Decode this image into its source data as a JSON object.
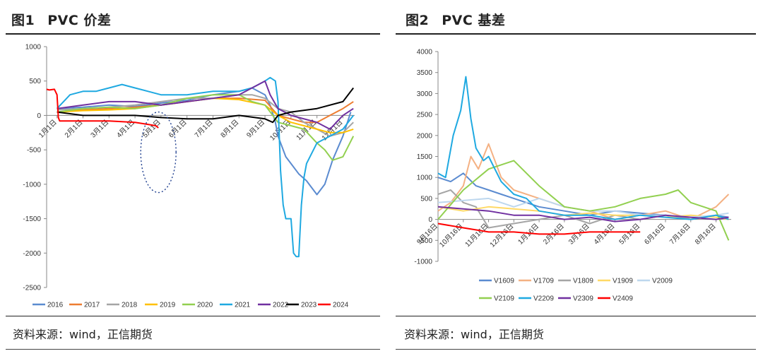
{
  "fig1": {
    "title_num": "图1",
    "title_text": "PVC 价差",
    "source": "资料来源：wind，正信期货"
  },
  "fig2": {
    "title_num": "图2",
    "title_text": "PVC 基差",
    "source": "资料来源：wind，正信期货"
  },
  "chart_data": [
    {
      "type": "line",
      "title": "PVC 价差",
      "xlabel": "",
      "ylabel": "",
      "ylim": [
        -2500,
        1000
      ],
      "yticks": [
        "1000",
        "500",
        "0",
        "-500",
        "-1000",
        "-1500",
        "-2000",
        "-2500"
      ],
      "x_ticks": [
        "1月1日",
        "2月1日",
        "3月1日",
        "4月1日",
        "5月1日",
        "6月1日",
        "7月1日",
        "8月1日",
        "9月1日",
        "10月1日",
        "11月1日",
        "12月1日"
      ],
      "legend_position": "bottom",
      "grid": false,
      "annotation": "dotted ellipse around late April to mid May",
      "series": [
        {
          "name": "2016",
          "color": "#5B8BD0",
          "x": [
            1,
            2,
            3,
            4,
            5,
            6,
            7,
            8,
            8.5,
            9,
            9.2,
            9.4,
            9.5,
            9.8,
            10,
            10.3,
            10.6,
            11,
            11.3,
            11.6,
            12,
            12.3
          ],
          "y": [
            100,
            120,
            150,
            130,
            180,
            220,
            300,
            350,
            400,
            300,
            150,
            -100,
            -300,
            -600,
            -700,
            -850,
            -950,
            -1150,
            -1000,
            -650,
            -300,
            50
          ]
        },
        {
          "name": "2017",
          "color": "#ED7D31",
          "x": [
            1,
            2,
            3,
            4,
            5,
            6,
            7,
            8,
            9,
            9.5,
            10,
            10.5,
            11,
            11.5,
            12,
            12.4
          ],
          "y": [
            50,
            80,
            100,
            120,
            150,
            200,
            250,
            250,
            220,
            0,
            -50,
            -100,
            -100,
            0,
            100,
            200
          ]
        },
        {
          "name": "2018",
          "color": "#A5A5A5",
          "x": [
            1,
            2,
            3,
            4,
            5,
            6,
            7,
            8,
            8.5,
            9,
            9.5,
            10,
            10.5,
            11,
            11.5,
            12,
            12.4
          ],
          "y": [
            80,
            100,
            120,
            150,
            200,
            250,
            250,
            300,
            300,
            250,
            100,
            50,
            -100,
            -200,
            -300,
            -250,
            -100
          ]
        },
        {
          "name": "2019",
          "color": "#FFC000",
          "x": [
            1,
            2,
            3,
            4,
            5,
            6,
            7,
            8,
            9,
            9.5,
            10,
            10.5,
            11,
            11.5,
            12,
            12.4
          ],
          "y": [
            50,
            70,
            80,
            100,
            150,
            200,
            250,
            230,
            150,
            0,
            -100,
            -150,
            -200,
            -250,
            -250,
            -200
          ]
        },
        {
          "name": "2020",
          "color": "#92D050",
          "x": [
            1,
            2,
            3,
            4,
            5,
            6,
            7,
            8,
            8.5,
            9,
            9.5,
            10,
            10.5,
            11,
            11.3,
            11.6,
            12,
            12.4
          ],
          "y": [
            50,
            100,
            120,
            100,
            150,
            250,
            300,
            300,
            200,
            150,
            -100,
            -150,
            -200,
            -400,
            -500,
            -650,
            -600,
            -300
          ]
        },
        {
          "name": "2021",
          "color": "#1FA9E1",
          "x": [
            1,
            1.5,
            2,
            2.5,
            3,
            3.5,
            4,
            4.5,
            5,
            6,
            7,
            8,
            8.5,
            9,
            9.2,
            9.4,
            9.5,
            9.6,
            9.7,
            9.8,
            10,
            10.1,
            10.2,
            10.3,
            10.4,
            10.5,
            10.6,
            11,
            11.5,
            12,
            12.4
          ],
          "y": [
            100,
            300,
            350,
            350,
            400,
            450,
            400,
            350,
            300,
            300,
            350,
            350,
            400,
            500,
            550,
            500,
            200,
            -800,
            -1300,
            -1500,
            -1500,
            -2000,
            -2050,
            -2050,
            -1300,
            -900,
            -700,
            -400,
            -300,
            -200,
            0
          ]
        },
        {
          "name": "2022",
          "color": "#7030A0",
          "x": [
            1,
            2,
            3,
            4,
            5,
            6,
            7,
            8,
            8.5,
            9,
            9.2,
            9.5,
            10,
            11,
            11.5,
            12,
            12.4
          ],
          "y": [
            100,
            150,
            200,
            200,
            150,
            200,
            250,
            300,
            400,
            500,
            300,
            100,
            0,
            -100,
            -200,
            0,
            100
          ]
        },
        {
          "name": "2023",
          "color": "#000000",
          "x": [
            1,
            2,
            3,
            4,
            5,
            6,
            7,
            8,
            9,
            9.3,
            9.5,
            10,
            11,
            12,
            12.4
          ],
          "y": [
            50,
            0,
            0,
            0,
            -30,
            -50,
            -50,
            0,
            -50,
            -100,
            0,
            50,
            100,
            200,
            400
          ]
        },
        {
          "name": "2024",
          "color": "#FF0000",
          "x": [
            0.6,
            0.7,
            0.9,
            1,
            1.05,
            1.1,
            1.5,
            2,
            3,
            4,
            4.5,
            4.8,
            4.9
          ],
          "y": [
            380,
            370,
            380,
            300,
            -30,
            -80,
            -80,
            -80,
            -80,
            -100,
            -130,
            -150,
            -180
          ]
        }
      ]
    },
    {
      "type": "line",
      "title": "PVC 基差",
      "xlabel": "",
      "ylabel": "",
      "ylim": [
        -1000,
        4000
      ],
      "yticks": [
        "4000",
        "3500",
        "3000",
        "2500",
        "2000",
        "1500",
        "1000",
        "500",
        "0",
        "-500",
        "-1000"
      ],
      "x_ticks": [
        "9月16日",
        "10月16日",
        "11月16日",
        "12月16日",
        "1月16日",
        "2月16日",
        "3月16日",
        "4月16日",
        "5月16日",
        "6月16日",
        "7月16日",
        "8月16日"
      ],
      "legend_position": "bottom",
      "grid": false,
      "series": [
        {
          "name": "V1609",
          "color": "#5B8BD0",
          "x": [
            0,
            0.5,
            1,
            1.5,
            2,
            2.5,
            3,
            4,
            5,
            6,
            7,
            8,
            9,
            10,
            11,
            11.5
          ],
          "y": [
            1000,
            900,
            1100,
            800,
            700,
            600,
            500,
            300,
            200,
            100,
            200,
            150,
            100,
            0,
            100,
            50
          ]
        },
        {
          "name": "V1709",
          "color": "#F4B183",
          "x": [
            0,
            0.5,
            1,
            1.3,
            1.6,
            2,
            2.5,
            3,
            4,
            5,
            6,
            7,
            8,
            9,
            10,
            11,
            11.5
          ],
          "y": [
            200,
            400,
            800,
            1500,
            1200,
            1800,
            1000,
            700,
            500,
            300,
            200,
            0,
            100,
            200,
            0,
            300,
            600
          ]
        },
        {
          "name": "V1809",
          "color": "#A5A5A5",
          "x": [
            0,
            0.5,
            1,
            1.5,
            2,
            3,
            4,
            5,
            6,
            7,
            8,
            9,
            10,
            11,
            11.5
          ],
          "y": [
            600,
            700,
            400,
            300,
            -200,
            -100,
            0,
            100,
            -100,
            100,
            0,
            100,
            0,
            100,
            0
          ]
        },
        {
          "name": "V1909",
          "color": "#FFD966",
          "x": [
            0,
            1,
            2,
            3,
            4,
            5,
            6,
            7,
            8,
            9,
            10,
            11,
            11.5
          ],
          "y": [
            300,
            200,
            300,
            250,
            200,
            100,
            150,
            100,
            100,
            50,
            100,
            50,
            0
          ]
        },
        {
          "name": "V2009",
          "color": "#BDD7EE",
          "x": [
            0,
            1,
            2,
            3,
            4,
            5,
            6,
            7,
            8,
            9,
            10,
            11,
            11.5
          ],
          "y": [
            400,
            450,
            500,
            300,
            500,
            300,
            200,
            200,
            100,
            100,
            50,
            100,
            150
          ]
        },
        {
          "name": "V2109",
          "color": "#92D050",
          "x": [
            0,
            1,
            2,
            3,
            4,
            5,
            6,
            7,
            8,
            9,
            9.5,
            10,
            11,
            11.5
          ],
          "y": [
            0,
            700,
            1200,
            1400,
            800,
            300,
            200,
            300,
            500,
            600,
            700,
            400,
            200,
            -500
          ]
        },
        {
          "name": "V2209",
          "color": "#1FA9E1",
          "x": [
            0,
            0.3,
            0.6,
            0.9,
            1.1,
            1.3,
            1.5,
            1.8,
            2,
            2.5,
            3,
            3.5,
            4,
            5,
            6,
            7,
            8,
            9,
            10,
            11,
            11.5
          ],
          "y": [
            1100,
            1000,
            2000,
            2600,
            3400,
            2400,
            1700,
            1400,
            1500,
            900,
            600,
            500,
            200,
            100,
            100,
            0,
            100,
            50,
            0,
            100,
            0
          ]
        },
        {
          "name": "V2309",
          "color": "#7030A0",
          "x": [
            0,
            1,
            2,
            3,
            4,
            5,
            6,
            7,
            8,
            9,
            10,
            11,
            11.5
          ],
          "y": [
            300,
            250,
            200,
            100,
            100,
            0,
            50,
            -50,
            0,
            100,
            50,
            0,
            50
          ]
        },
        {
          "name": "V2409",
          "color": "#FF0000",
          "x": [
            0,
            1,
            2,
            3,
            4,
            5,
            6,
            7,
            8
          ],
          "y": [
            -100,
            -200,
            -300,
            -300,
            -350,
            -350,
            -300,
            -300,
            -300
          ]
        }
      ]
    }
  ]
}
